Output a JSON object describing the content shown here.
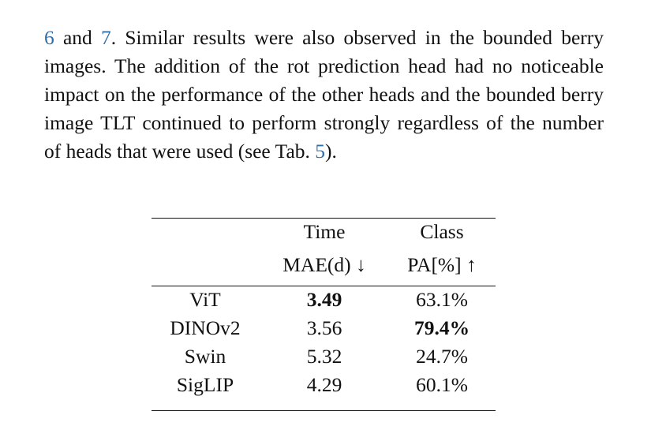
{
  "paragraph": {
    "parts": [
      "6",
      " and ",
      "7",
      ". Similar results were also observed in the bounded berry images. The addition of the rot prediction head had no noticeable impact on the performance of the other heads and the bounded berry image TLT continued to perform strongly regardless of the number of heads that were used (see Tab. ",
      "5",
      ")."
    ]
  },
  "table": {
    "header": [
      [
        "Time",
        "MAE(d) ↓"
      ],
      [
        "Class",
        "PA[%] ↑"
      ]
    ],
    "rows": [
      [
        "ViT",
        "3.49",
        "63.1%"
      ],
      [
        "DINOv2",
        "3.56",
        "79.4%"
      ],
      [
        "Swin",
        "5.32",
        "24.7%"
      ],
      [
        "SigLIP",
        "4.29",
        "60.1%"
      ]
    ]
  }
}
